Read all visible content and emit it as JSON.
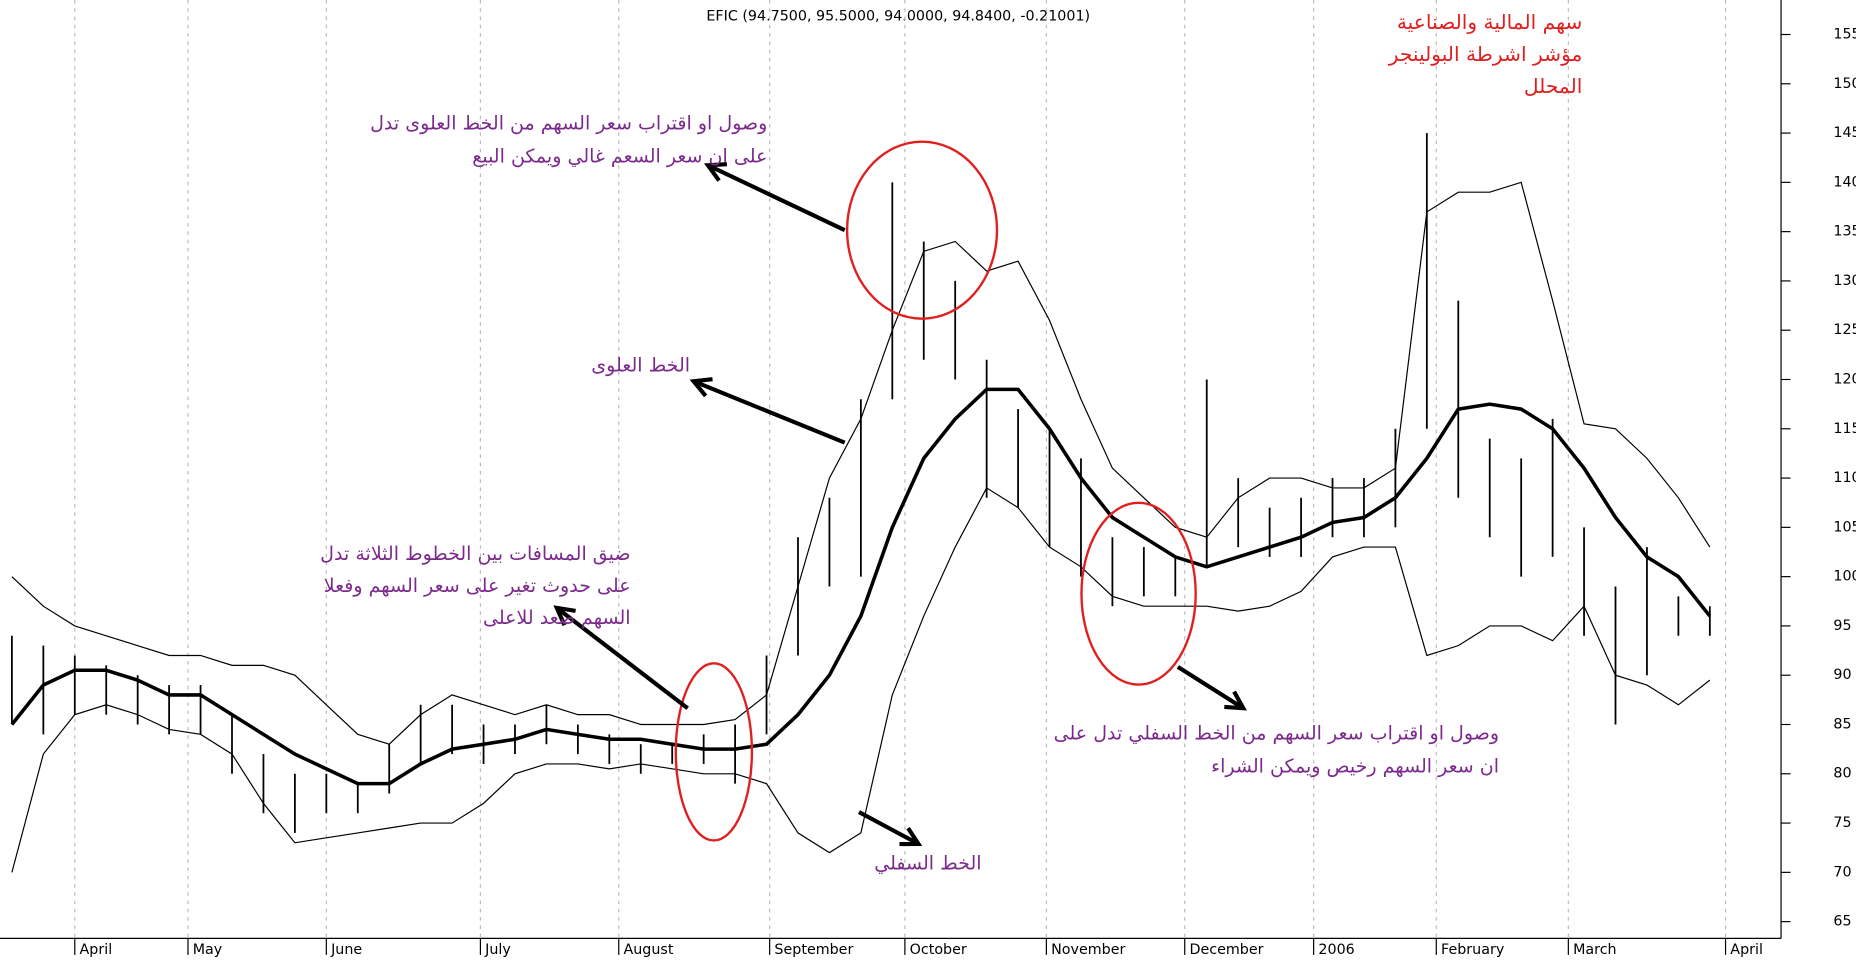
{
  "chart_data": {
    "type": "stock",
    "title": "EFIC (94.7500, 95.5000, 94.0000, 94.8400, -0.21001)",
    "x": [
      0,
      1,
      2,
      3,
      4,
      5,
      6,
      7,
      8,
      9,
      10,
      11,
      12,
      13,
      14,
      15,
      16,
      17,
      18,
      19,
      20,
      21,
      22,
      23,
      24,
      25,
      26,
      27,
      28,
      29,
      30,
      31,
      32,
      33,
      34,
      35,
      36,
      37,
      38,
      39,
      40,
      41,
      42,
      43,
      44,
      45,
      46,
      47,
      48,
      49,
      50,
      51,
      52,
      53,
      54
    ],
    "xlim": [
      0,
      56
    ],
    "xticks": [
      {
        "value": 2.0,
        "label": "April"
      },
      {
        "value": 5.6,
        "label": "May"
      },
      {
        "value": 10.0,
        "label": "June"
      },
      {
        "value": 14.9,
        "label": "July"
      },
      {
        "value": 19.3,
        "label": "August"
      },
      {
        "value": 24.1,
        "label": "September"
      },
      {
        "value": 28.4,
        "label": "October"
      },
      {
        "value": 32.9,
        "label": "November"
      },
      {
        "value": 37.3,
        "label": "December"
      },
      {
        "value": 41.4,
        "label": "2006"
      },
      {
        "value": 45.3,
        "label": "February"
      },
      {
        "value": 49.5,
        "label": "March"
      },
      {
        "value": 54.5,
        "label": "April"
      }
    ],
    "ylim": [
      63.3,
      158.5
    ],
    "yticks": [
      65,
      70,
      75,
      80,
      85,
      90,
      95,
      100,
      105,
      110,
      115,
      120,
      125,
      130,
      135,
      140,
      145,
      150,
      155
    ],
    "grid": true,
    "bars": {
      "color": "#000000",
      "high": [
        94,
        93,
        92,
        91,
        90,
        89,
        89,
        86,
        82,
        80,
        80,
        79,
        83,
        87,
        87,
        85,
        85,
        87,
        85,
        84,
        83,
        83,
        84,
        85,
        92,
        104,
        108,
        118,
        140,
        134,
        130,
        122,
        117,
        115,
        112,
        104,
        103,
        102,
        120,
        110,
        107,
        108,
        110,
        110,
        115,
        145,
        128,
        114,
        112,
        116,
        105,
        99,
        103,
        98,
        97
      ],
      "low": [
        85,
        84,
        86,
        86,
        85,
        84,
        84,
        80,
        76,
        74,
        76,
        76,
        78,
        81,
        82,
        81,
        82,
        83,
        82,
        81,
        80,
        81,
        81,
        79,
        84,
        92,
        99,
        100,
        118,
        122,
        120,
        108,
        107,
        103,
        100,
        97,
        98,
        98,
        101,
        103,
        102,
        102,
        104,
        104,
        105,
        115,
        108,
        104,
        100,
        102,
        94,
        85,
        90,
        94,
        94
      ]
    },
    "series": [
      {
        "color": "#000000",
        "bold": false,
        "values": [
          100,
          97,
          95,
          94,
          93,
          92,
          92,
          91,
          91,
          90,
          87,
          84,
          83,
          86,
          88,
          87,
          86,
          87,
          86,
          86,
          85,
          85,
          85,
          85.5,
          88,
          99,
          110,
          116,
          125,
          133,
          134,
          131,
          132,
          126,
          118,
          111,
          108,
          105,
          104,
          108,
          110,
          110,
          109,
          109,
          111,
          137,
          139,
          139,
          140,
          128,
          115.5,
          115,
          112,
          108,
          103
        ]
      },
      {
        "color": "#000000",
        "bold": true,
        "values": [
          85,
          89,
          90.5,
          90.5,
          89.5,
          88,
          88,
          86,
          84,
          82,
          80.5,
          79,
          79,
          81,
          82.5,
          83,
          83.5,
          84.5,
          84,
          83.5,
          83.5,
          83,
          82.5,
          82.5,
          83,
          86,
          90,
          96,
          105,
          112,
          116,
          119,
          119,
          115,
          110,
          106,
          104,
          102,
          101,
          102,
          103,
          104,
          105.5,
          106,
          108,
          112,
          117,
          117.5,
          117,
          115,
          111,
          106,
          102,
          100,
          96
        ]
      },
      {
        "color": "#000000",
        "bold": false,
        "values": [
          70,
          82,
          86,
          87,
          86,
          84.5,
          84,
          82,
          77,
          73,
          73.5,
          74,
          74.5,
          75,
          75,
          77,
          80,
          81,
          81,
          80.5,
          81,
          80.5,
          80,
          80,
          79,
          74,
          72,
          74,
          88,
          96,
          103,
          109,
          107,
          103,
          101,
          98,
          97,
          97,
          97,
          96.5,
          97,
          98.5,
          102,
          103,
          103,
          92,
          93,
          95,
          95,
          93.5,
          97,
          90,
          89,
          87,
          89.5
        ]
      }
    ],
    "annotations": [
      {
        "color": "#7b2a8c",
        "lines": [
          "وصول او اقتراب سعر السهم من الخط العلوى تدل",
          "على ان سعر السعم غالي ويمكن البيع"
        ]
      },
      {
        "color": "#7b2a8c",
        "lines": [
          "الخط العلوى"
        ]
      },
      {
        "color": "#7b2a8c",
        "lines": [
          "ضيق المسافات بين الخطوط الثلاثة تدل",
          "على حدوث تغير على سعر السهم وفعلا",
          "السهم صعد للاعلى"
        ]
      },
      {
        "color": "#7b2a8c",
        "lines": [
          "وصول او اقتراب سعر السهم من الخط السفلي تدل على",
          "ان سعر السهم رخيص ويمكن الشراء"
        ]
      },
      {
        "color": "#7b2a8c",
        "lines": [
          "الخط السفلي"
        ]
      },
      {
        "color": "#e02020",
        "lines": [
          "سهم المالية والصناعية",
          "مؤشر اشرطة البولينجر",
          "المحلل"
        ]
      }
    ]
  }
}
